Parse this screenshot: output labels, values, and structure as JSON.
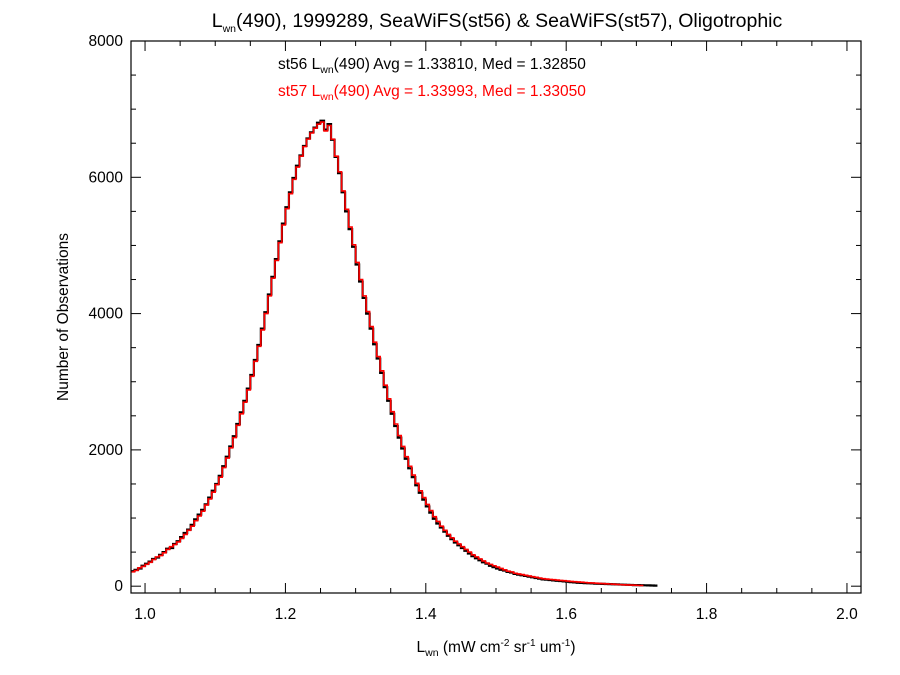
{
  "chart_data": {
    "type": "histogram-step",
    "title": {
      "prefix": "L",
      "sub": "wn",
      "rest": "(490), 1999289, SeaWiFS(st56) & SeaWiFS(st57), Oligotrophic"
    },
    "xlabel": {
      "base": "L",
      "sub": "wn",
      "p1": " (mW cm",
      "s1": "-2",
      "p2": " sr",
      "s2": "-1",
      "p3": " um",
      "s3": "-1",
      "p4": ")"
    },
    "ylabel": "Number of Observations",
    "xlim": [
      0.98,
      2.02
    ],
    "ylim": [
      -100,
      8000
    ],
    "x_ticks": [
      "1.0",
      "1.2",
      "1.4",
      "1.6",
      "1.8",
      "2.0"
    ],
    "x_tick_values": [
      1.0,
      1.2,
      1.4,
      1.6,
      1.8,
      2.0
    ],
    "y_ticks": [
      "0",
      "2000",
      "4000",
      "6000",
      "8000"
    ],
    "y_tick_values": [
      0,
      2000,
      4000,
      6000,
      8000
    ],
    "bin_width": 0.005,
    "x_start": 0.98,
    "series": [
      {
        "color": "#000000",
        "annotation": {
          "pre": "st56 L",
          "sub": "wn",
          "post": "(490) Avg = 1.33810, Med = 1.32850"
        },
        "values": [
          220,
          240,
          260,
          300,
          330,
          360,
          400,
          420,
          460,
          500,
          550,
          560,
          620,
          660,
          720,
          780,
          830,
          900,
          980,
          1050,
          1120,
          1200,
          1300,
          1400,
          1500,
          1620,
          1760,
          1900,
          2050,
          2200,
          2380,
          2550,
          2720,
          2900,
          3100,
          3320,
          3540,
          3780,
          4020,
          4280,
          4540,
          4800,
          5060,
          5320,
          5560,
          5780,
          5990,
          6170,
          6320,
          6460,
          6570,
          6660,
          6730,
          6800,
          6830,
          6700,
          6780,
          6550,
          6300,
          6060,
          5780,
          5500,
          5240,
          4980,
          4720,
          4470,
          4230,
          4000,
          3780,
          3550,
          3340,
          3130,
          2920,
          2720,
          2530,
          2350,
          2180,
          2020,
          1870,
          1730,
          1600,
          1480,
          1370,
          1270,
          1170,
          1080,
          990,
          920,
          860,
          800,
          740,
          690,
          640,
          600,
          560,
          520,
          480,
          440,
          410,
          380,
          350,
          330,
          300,
          280,
          260,
          240,
          230,
          210,
          200,
          180,
          170,
          160,
          150,
          140,
          130,
          120,
          110,
          100,
          95,
          90,
          85,
          80,
          75,
          70,
          65,
          60,
          55,
          50,
          48,
          45,
          42,
          40,
          38,
          36,
          34,
          32,
          30,
          28,
          26,
          24,
          22,
          20,
          18,
          16,
          15,
          14,
          13,
          12,
          10,
          8
        ]
      },
      {
        "color": "#ff0000",
        "annotation": {
          "pre": "st57 L",
          "sub": "wn",
          "post": "(490) Avg = 1.33993, Med = 1.33050"
        },
        "values": [
          210,
          230,
          270,
          290,
          320,
          350,
          390,
          430,
          450,
          490,
          540,
          580,
          610,
          650,
          700,
          760,
          820,
          880,
          960,
          1030,
          1100,
          1190,
          1280,
          1380,
          1490,
          1600,
          1740,
          1880,
          2030,
          2180,
          2360,
          2530,
          2700,
          2880,
          3080,
          3300,
          3520,
          3760,
          4000,
          4260,
          4520,
          4780,
          5040,
          5300,
          5540,
          5760,
          5970,
          6150,
          6310,
          6450,
          6560,
          6650,
          6720,
          6780,
          6810,
          6680,
          6760,
          6560,
          6310,
          6080,
          5800,
          5530,
          5270,
          5010,
          4750,
          4500,
          4260,
          4030,
          3810,
          3580,
          3370,
          3160,
          2950,
          2750,
          2560,
          2380,
          2210,
          2050,
          1900,
          1760,
          1630,
          1510,
          1400,
          1300,
          1200,
          1110,
          1020,
          950,
          880,
          820,
          760,
          710,
          660,
          620,
          580,
          540,
          500,
          460,
          430,
          400,
          370,
          340,
          320,
          300,
          280,
          260,
          240,
          220,
          210,
          190,
          180,
          170,
          160,
          150,
          140,
          130,
          120,
          110,
          105,
          100,
          95,
          90,
          85,
          80,
          75,
          70,
          66,
          62,
          58,
          54,
          50,
          47,
          44,
          41,
          38,
          35,
          32,
          29,
          26,
          23,
          20,
          18,
          16,
          14,
          12,
          10
        ]
      }
    ]
  }
}
